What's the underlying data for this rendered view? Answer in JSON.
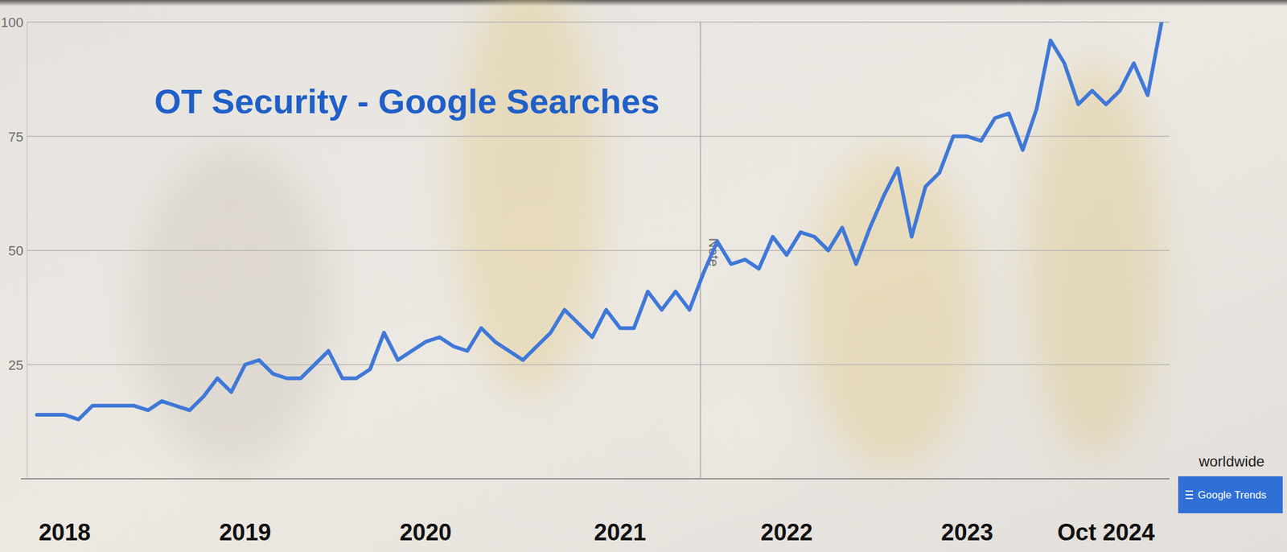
{
  "chart_data": {
    "type": "line",
    "title": "OT Security - Google Searches",
    "categories": [
      null,
      null,
      "2018",
      null,
      null,
      null,
      null,
      null,
      null,
      null,
      null,
      null,
      null,
      null,
      null,
      "2019",
      null,
      null,
      null,
      null,
      null,
      null,
      null,
      null,
      null,
      null,
      null,
      null,
      "2020",
      null,
      null,
      null,
      null,
      null,
      null,
      null,
      null,
      null,
      null,
      null,
      null,
      null,
      "2021",
      null,
      null,
      null,
      null,
      null,
      null,
      null,
      null,
      null,
      null,
      null,
      "2022",
      null,
      null,
      null,
      null,
      null,
      null,
      null,
      null,
      null,
      null,
      null,
      null,
      "2023",
      null,
      null,
      null,
      null,
      null,
      null,
      null,
      null,
      null,
      "Oct 2024",
      null,
      null,
      null,
      null
    ],
    "values": [
      14,
      14,
      14,
      13,
      16,
      16,
      16,
      16,
      15,
      17,
      16,
      15,
      18,
      22,
      19,
      25,
      26,
      23,
      22,
      22,
      25,
      28,
      22,
      22,
      24,
      32,
      26,
      28,
      30,
      31,
      29,
      28,
      33,
      30,
      28,
      26,
      29,
      32,
      37,
      34,
      31,
      37,
      33,
      33,
      41,
      37,
      41,
      37,
      45,
      52,
      47,
      48,
      46,
      53,
      49,
      54,
      53,
      50,
      55,
      47,
      55,
      62,
      68,
      53,
      64,
      67,
      75,
      75,
      74,
      79,
      80,
      72,
      81,
      96,
      91,
      82,
      85,
      82,
      85,
      91,
      84,
      100
    ],
    "color": "#3f78d8",
    "ylim": [
      0,
      100
    ],
    "yticks": [
      25,
      50,
      75,
      100
    ],
    "grid": true,
    "annotations": [
      "Note",
      "worldwide",
      "Google Trends"
    ]
  }
}
